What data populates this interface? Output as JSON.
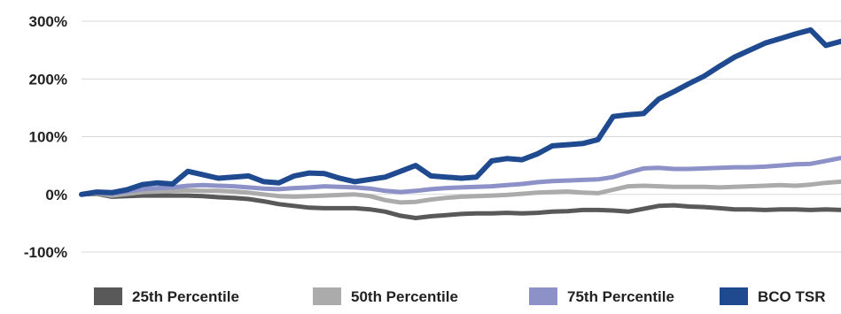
{
  "chart_data": {
    "type": "line",
    "title": "",
    "xlabel": "",
    "ylabel": "",
    "ylim": [
      -100,
      300
    ],
    "yticks": [
      {
        "value": 300,
        "label": "300%"
      },
      {
        "value": 200,
        "label": "200%"
      },
      {
        "value": 100,
        "label": "100%"
      },
      {
        "value": 0,
        "label": "0%"
      },
      {
        "value": -100,
        "label": "-100%"
      }
    ],
    "grid": true,
    "legend_position": "bottom",
    "x": [
      0,
      2,
      4,
      6,
      8,
      10,
      12,
      14,
      16,
      18,
      20,
      22,
      24,
      26,
      28,
      30,
      32,
      34,
      36,
      38,
      40,
      42,
      44,
      46,
      48,
      50,
      52,
      54,
      56,
      58,
      60,
      62,
      64,
      66,
      68,
      70,
      72,
      74,
      76,
      78,
      80,
      82,
      84,
      86,
      88,
      90,
      92,
      94,
      96,
      98,
      100
    ],
    "series": [
      {
        "name": "25th Percentile",
        "color": "#595959",
        "width": 5,
        "values": [
          0,
          1,
          -4,
          -3,
          -2,
          -2,
          -2,
          -2,
          -3,
          -5,
          -6,
          -8,
          -12,
          -17,
          -20,
          -23,
          -24,
          -24,
          -24,
          -26,
          -30,
          -37,
          -41,
          -38,
          -36,
          -34,
          -33,
          -33,
          -32,
          -33,
          -32,
          -30,
          -29,
          -27,
          -27,
          -28,
          -30,
          -25,
          -20,
          -19,
          -21,
          -22,
          -24,
          -26,
          -26,
          -27,
          -26,
          -26,
          -27,
          -26,
          -27
        ]
      },
      {
        "name": "50th Percentile",
        "color": "#ababab",
        "width": 5,
        "values": [
          0,
          2,
          -2,
          1,
          4,
          5,
          6,
          7,
          6,
          6,
          5,
          3,
          0,
          -3,
          -4,
          -3,
          -2,
          -1,
          0,
          -3,
          -10,
          -14,
          -13,
          -9,
          -6,
          -4,
          -3,
          -2,
          -1,
          1,
          3,
          4,
          5,
          3,
          2,
          8,
          14,
          15,
          14,
          13,
          13,
          13,
          12,
          13,
          14,
          15,
          16,
          15,
          17,
          20,
          22
        ]
      },
      {
        "name": "75th Percentile",
        "color": "#8c91c8",
        "width": 5,
        "values": [
          0,
          3,
          1,
          5,
          9,
          11,
          12,
          15,
          16,
          15,
          14,
          12,
          10,
          9,
          11,
          12,
          14,
          13,
          12,
          10,
          6,
          4,
          6,
          9,
          11,
          12,
          13,
          14,
          16,
          18,
          21,
          23,
          24,
          25,
          26,
          30,
          38,
          45,
          46,
          44,
          44,
          45,
          46,
          47,
          47,
          48,
          50,
          52,
          53,
          58,
          63
        ]
      },
      {
        "name": "BCO TSR",
        "color": "#1f4a8f",
        "width": 6,
        "values": [
          0,
          4,
          3,
          8,
          17,
          20,
          18,
          40,
          34,
          28,
          30,
          32,
          22,
          20,
          32,
          37,
          36,
          28,
          22,
          26,
          30,
          40,
          50,
          32,
          30,
          28,
          30,
          58,
          62,
          60,
          70,
          84,
          86,
          88,
          95,
          135,
          138,
          140,
          165,
          178,
          192,
          205,
          222,
          238,
          250,
          262,
          270,
          278,
          285,
          258,
          265
        ]
      }
    ],
    "legend": [
      {
        "label": "25th Percentile",
        "color": "#595959"
      },
      {
        "label": "50th Percentile",
        "color": "#ababab"
      },
      {
        "label": "75th Percentile",
        "color": "#8c91c8"
      },
      {
        "label": "BCO TSR",
        "color": "#1f4a8f"
      }
    ]
  }
}
